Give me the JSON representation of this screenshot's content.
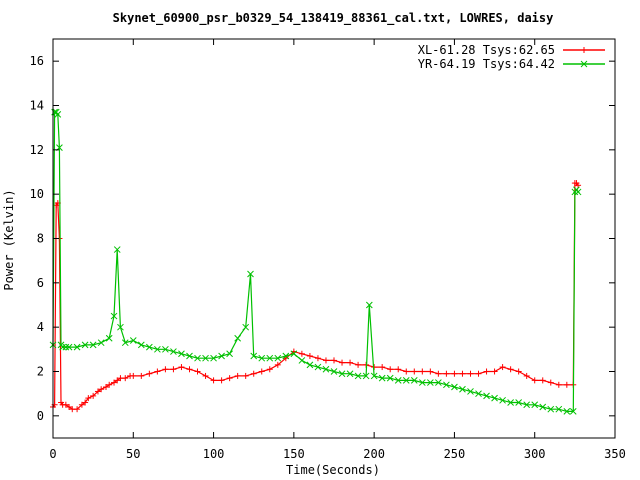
{
  "chart_data": {
    "type": "line",
    "title": "Skynet_60900_psr_b0329_54_138419_88361_cal.txt, LOWRES, daisy",
    "xlabel": "Time(Seconds)",
    "ylabel": "Power (Kelvin)",
    "xlim": [
      0,
      350
    ],
    "ylim": [
      -1,
      17
    ],
    "xticks": [
      0,
      50,
      100,
      150,
      200,
      250,
      300,
      350
    ],
    "yticks": [
      0,
      2,
      4,
      6,
      8,
      10,
      12,
      14,
      16
    ],
    "grid": false,
    "legend_position": "top-right",
    "series": [
      {
        "name": "XL-61.28 Tsys:62.65",
        "color": "#ff0000",
        "marker": "plus",
        "x": [
          0,
          1,
          2,
          3,
          4,
          5,
          6,
          8,
          10,
          12,
          15,
          18,
          20,
          22,
          25,
          28,
          30,
          33,
          35,
          38,
          40,
          42,
          45,
          48,
          50,
          55,
          60,
          65,
          70,
          75,
          80,
          85,
          90,
          95,
          100,
          105,
          110,
          115,
          120,
          125,
          130,
          135,
          140,
          145,
          150,
          155,
          160,
          165,
          170,
          175,
          180,
          185,
          190,
          195,
          200,
          205,
          210,
          215,
          220,
          225,
          230,
          235,
          240,
          245,
          250,
          255,
          260,
          265,
          270,
          275,
          280,
          285,
          290,
          295,
          300,
          305,
          310,
          315,
          320,
          324,
          325,
          326,
          327
        ],
        "y": [
          0.4,
          0.5,
          9.5,
          9.6,
          8.0,
          0.6,
          0.5,
          0.5,
          0.4,
          0.3,
          0.3,
          0.5,
          0.6,
          0.8,
          0.9,
          1.1,
          1.2,
          1.3,
          1.4,
          1.5,
          1.6,
          1.7,
          1.7,
          1.8,
          1.8,
          1.8,
          1.9,
          2.0,
          2.1,
          2.1,
          2.2,
          2.1,
          2.0,
          1.8,
          1.6,
          1.6,
          1.7,
          1.8,
          1.8,
          1.9,
          2.0,
          2.1,
          2.3,
          2.6,
          2.9,
          2.8,
          2.7,
          2.6,
          2.5,
          2.5,
          2.4,
          2.4,
          2.3,
          2.3,
          2.2,
          2.2,
          2.1,
          2.1,
          2.0,
          2.0,
          2.0,
          2.0,
          1.9,
          1.9,
          1.9,
          1.9,
          1.9,
          1.9,
          2.0,
          2.0,
          2.2,
          2.1,
          2.0,
          1.8,
          1.6,
          1.6,
          1.5,
          1.4,
          1.4,
          1.4,
          10.5,
          10.5,
          10.4
        ]
      },
      {
        "name": "YR-64.19 Tsys:64.42",
        "color": "#00c000",
        "marker": "x",
        "x": [
          0,
          1,
          2,
          3,
          4,
          5,
          6,
          8,
          10,
          15,
          20,
          25,
          30,
          35,
          38,
          40,
          42,
          45,
          50,
          55,
          60,
          65,
          70,
          75,
          80,
          85,
          90,
          95,
          100,
          105,
          110,
          115,
          120,
          123,
          125,
          130,
          135,
          140,
          145,
          150,
          155,
          160,
          165,
          170,
          175,
          180,
          185,
          190,
          195,
          197,
          200,
          205,
          210,
          215,
          220,
          225,
          230,
          235,
          240,
          245,
          250,
          255,
          260,
          265,
          270,
          275,
          280,
          285,
          290,
          295,
          300,
          305,
          310,
          315,
          320,
          324,
          325,
          326,
          327
        ],
        "y": [
          3.2,
          13.7,
          13.7,
          13.6,
          12.1,
          3.2,
          3.1,
          3.1,
          3.1,
          3.1,
          3.2,
          3.2,
          3.3,
          3.5,
          4.5,
          7.5,
          4.0,
          3.3,
          3.4,
          3.2,
          3.1,
          3.0,
          3.0,
          2.9,
          2.8,
          2.7,
          2.6,
          2.6,
          2.6,
          2.7,
          2.8,
          3.5,
          4.0,
          6.4,
          2.7,
          2.6,
          2.6,
          2.6,
          2.7,
          2.8,
          2.5,
          2.3,
          2.2,
          2.1,
          2.0,
          1.9,
          1.9,
          1.8,
          1.8,
          5.0,
          1.8,
          1.7,
          1.7,
          1.6,
          1.6,
          1.6,
          1.5,
          1.5,
          1.5,
          1.4,
          1.3,
          1.2,
          1.1,
          1.0,
          0.9,
          0.8,
          0.7,
          0.6,
          0.6,
          0.5,
          0.5,
          0.4,
          0.3,
          0.3,
          0.2,
          0.2,
          10.1,
          10.2,
          10.1
        ]
      }
    ]
  }
}
